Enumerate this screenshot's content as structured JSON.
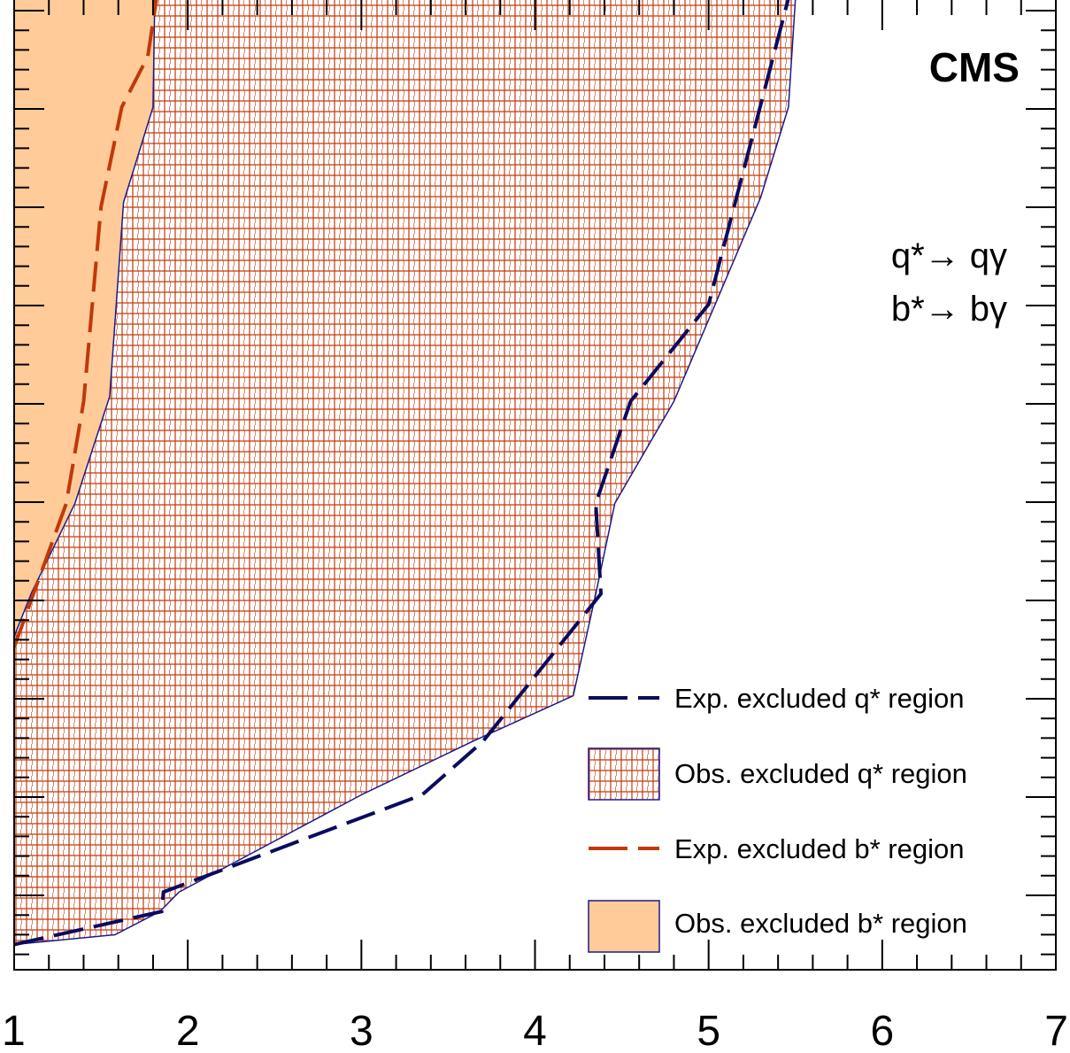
{
  "chart_data": {
    "type": "area",
    "x_tick_labels": [
      "1",
      "2",
      "3",
      "4",
      "5",
      "6",
      "7"
    ],
    "xlim": [
      1,
      7
    ],
    "ylim": [
      0,
      1
    ],
    "grid": false,
    "legend_placement": "bottom-right",
    "annotations": {
      "experiment": "CMS",
      "process_1": "q*→ qγ",
      "process_2": "b*→ bγ"
    },
    "legend": [
      {
        "label": "Exp. excluded q* region",
        "style": "dashed-line",
        "color": "#0b0b5e"
      },
      {
        "label": "Obs. excluded q* region",
        "style": "hatched-fill",
        "color": "#c0390b"
      },
      {
        "label": "Exp. excluded b* region",
        "style": "dashed-line",
        "color": "#c0390b"
      },
      {
        "label": "Obs. excluded b* region",
        "style": "solid-fill",
        "color": "#ffcb99"
      }
    ],
    "series": [
      {
        "name": "Obs. excluded q* region",
        "kind": "filled-boundary",
        "x": [
          1.0,
          1.58,
          1.84,
          1.95,
          3.0,
          3.64,
          4.22,
          4.35,
          4.46,
          4.8,
          5.3,
          5.46,
          5.5
        ],
        "y": [
          0.026,
          0.036,
          0.06,
          0.08,
          0.18,
          0.235,
          0.282,
          0.387,
          0.48,
          0.585,
          0.795,
          0.888,
          1.0
        ]
      },
      {
        "name": "Obs. excluded b* region",
        "kind": "filled-boundary",
        "x": [
          1.0,
          1.1,
          1.35,
          1.55,
          1.63,
          1.8,
          1.81
        ],
        "y": [
          0.343,
          0.388,
          0.48,
          0.59,
          0.79,
          0.888,
          1.0
        ]
      },
      {
        "name": "Exp. excluded q* region",
        "kind": "dashed-boundary",
        "x": [
          1.0,
          1.85,
          1.86,
          3.35,
          3.7,
          4.38,
          4.35,
          4.55,
          5.0,
          5.46,
          5.6
        ],
        "y": [
          0.026,
          0.06,
          0.08,
          0.18,
          0.235,
          0.387,
          0.48,
          0.585,
          0.685,
          1.0,
          1.0
        ]
      },
      {
        "name": "Exp. excluded b* region",
        "kind": "dashed-boundary",
        "x": [
          1.0,
          1.3,
          1.4,
          1.5,
          1.62,
          1.77,
          1.82
        ],
        "y": [
          0.332,
          0.48,
          0.585,
          0.785,
          0.888,
          0.94,
          1.0
        ]
      }
    ]
  },
  "colors": {
    "axis": "#000000",
    "q_line": "#0b0b5e",
    "q_hatch": "#c0390b",
    "b_fill": "#ffcb99",
    "b_line": "#c0390b",
    "region_border": "#1a1a8c"
  }
}
